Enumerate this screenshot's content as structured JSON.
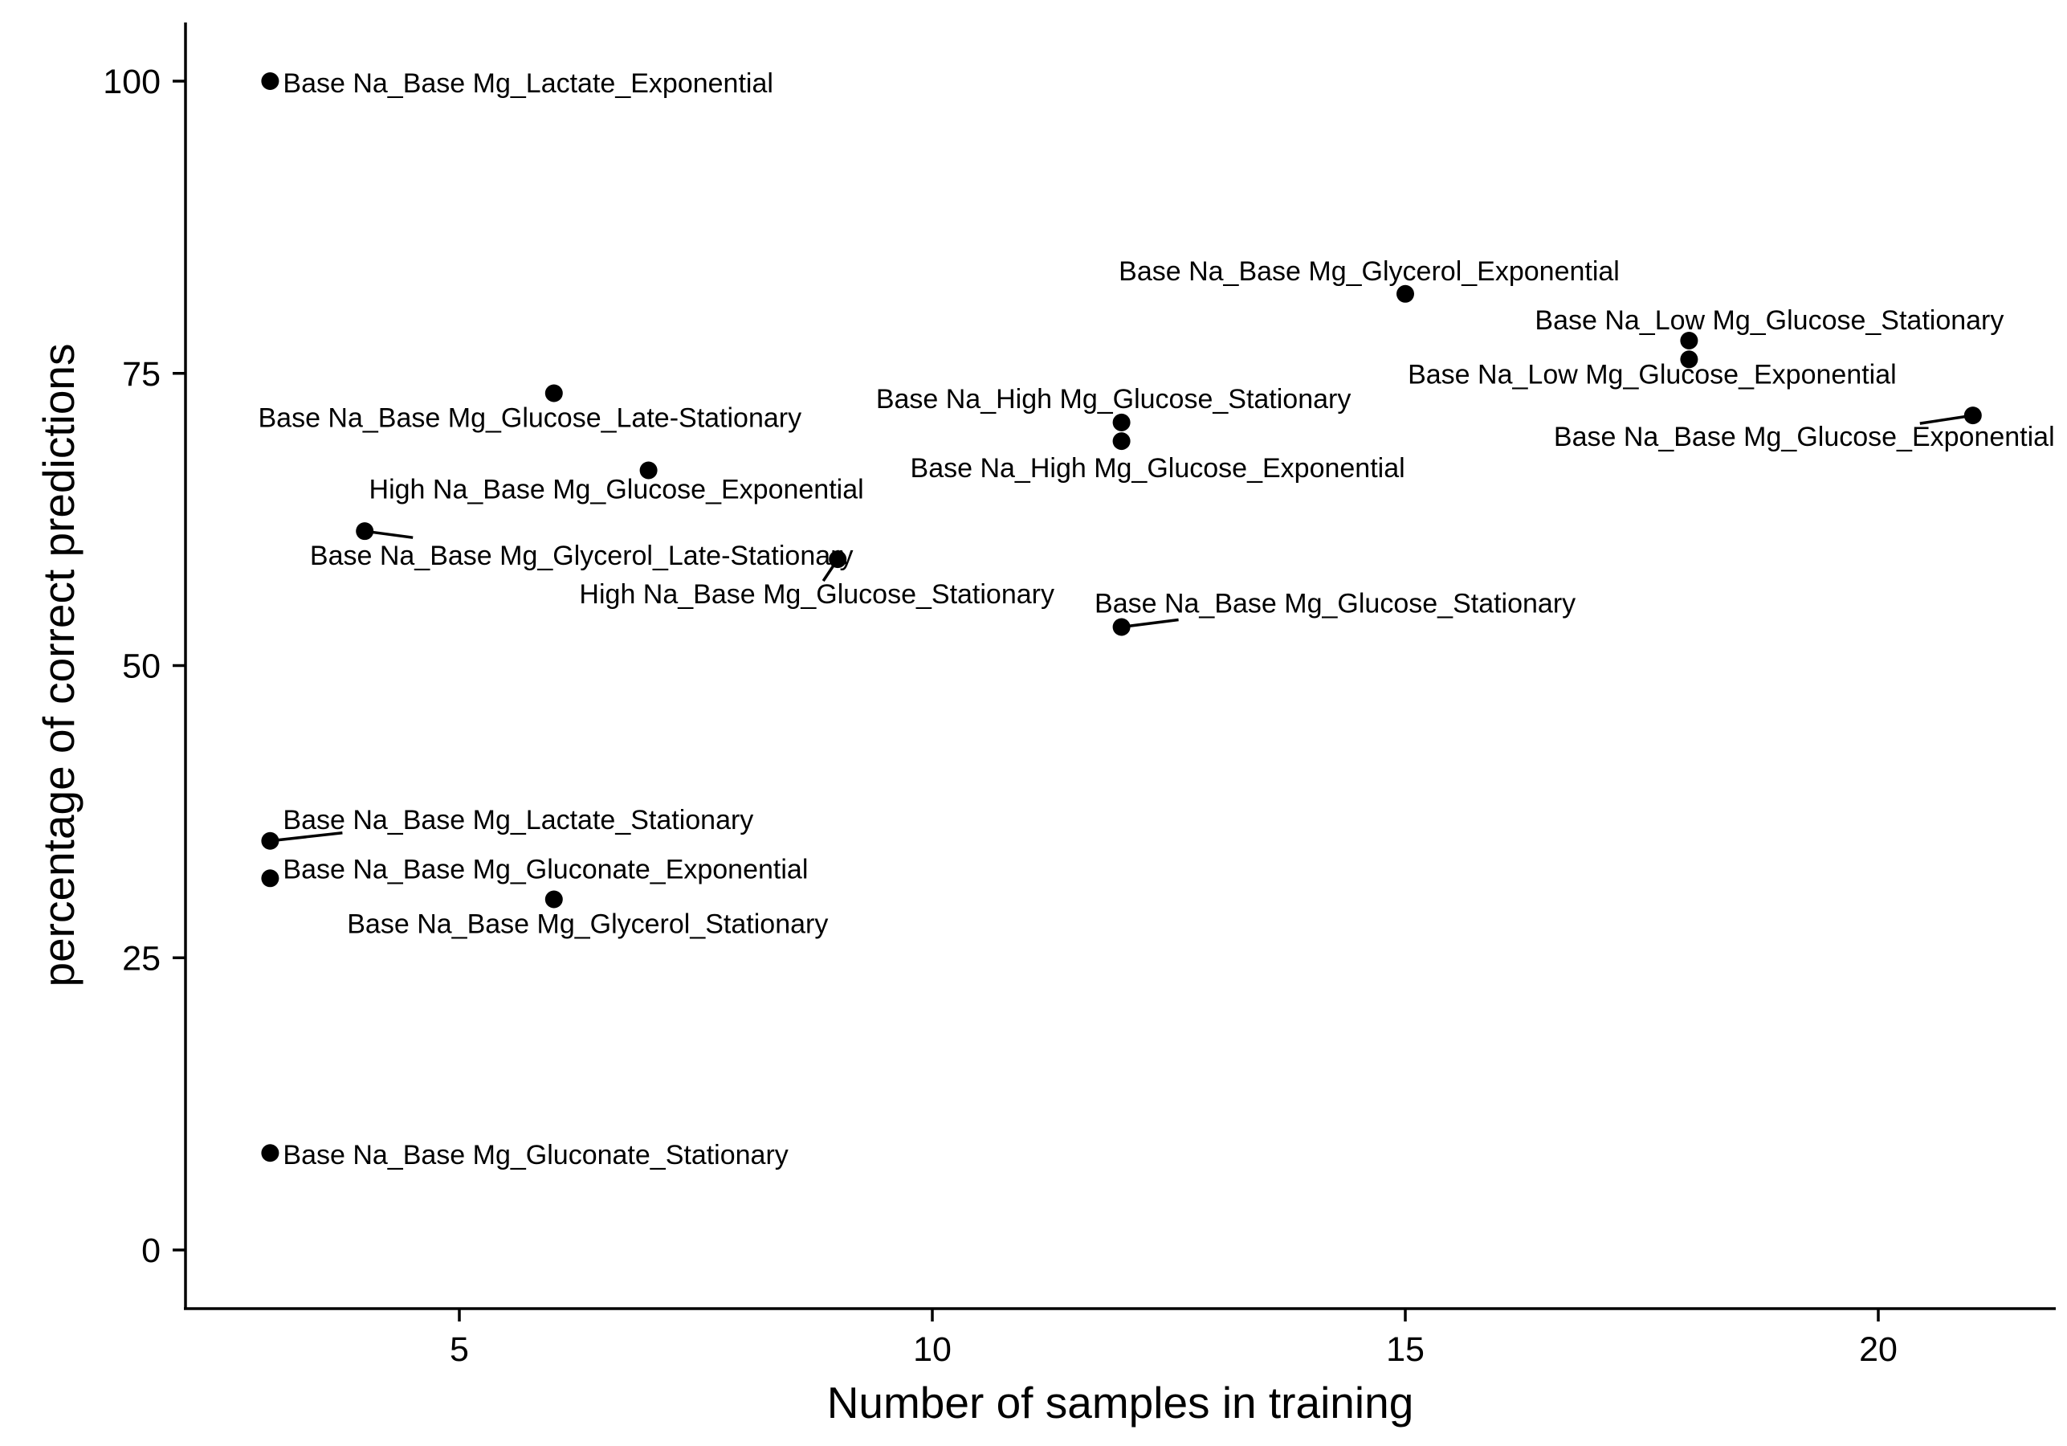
{
  "chart_data": {
    "type": "scatter",
    "title": "",
    "xlabel": "Number of samples in training",
    "ylabel": "percentage of correct predictions",
    "xlim": [
      2.1,
      21.9
    ],
    "ylim": [
      -4.8,
      105
    ],
    "x_ticks": [
      5,
      10,
      15,
      20
    ],
    "y_ticks": [
      0,
      25,
      50,
      75,
      100
    ],
    "grid": false,
    "legend": "none",
    "points": [
      {
        "x": 3,
        "y": 100,
        "label": "Base Na_Base Mg_Lactate_Exponential"
      },
      {
        "x": 15,
        "y": 81.8,
        "label": "Base Na_Base Mg_Glycerol_Exponential"
      },
      {
        "x": 18,
        "y": 77.8,
        "label": "Base Na_Low Mg_Glucose_Stationary"
      },
      {
        "x": 18,
        "y": 76.2,
        "label": "Base Na_Low Mg_Glucose_Exponential"
      },
      {
        "x": 6,
        "y": 73.3,
        "label": "Base Na_Base Mg_Glucose_Late-Stationary"
      },
      {
        "x": 21,
        "y": 71.4,
        "label": "Base Na_Base Mg_Glucose_Exponential"
      },
      {
        "x": 12,
        "y": 70.8,
        "label": "Base Na_High Mg_Glucose_Stationary"
      },
      {
        "x": 12,
        "y": 69.2,
        "label": "Base Na_High Mg_Glucose_Exponential"
      },
      {
        "x": 7,
        "y": 66.7,
        "label": "High Na_Base Mg_Glucose_Exponential"
      },
      {
        "x": 4,
        "y": 61.5,
        "label": "Base Na_Base Mg_Glycerol_Late-Stationary"
      },
      {
        "x": 9,
        "y": 59.1,
        "label": "High Na_Base Mg_Glucose_Stationary"
      },
      {
        "x": 12,
        "y": 53.3,
        "label": "Base Na_Base Mg_Glucose_Stationary"
      },
      {
        "x": 3,
        "y": 35,
        "label": "Base Na_Base Mg_Lactate_Stationary"
      },
      {
        "x": 3,
        "y": 31.8,
        "label": "Base Na_Base Mg_Gluconate_Exponential"
      },
      {
        "x": 6,
        "y": 30,
        "label": "Base Na_Base Mg_Glycerol_Stationary"
      },
      {
        "x": 3,
        "y": 8.3,
        "label": "Base Na_Base Mg_Gluconate_Stationary"
      }
    ]
  }
}
